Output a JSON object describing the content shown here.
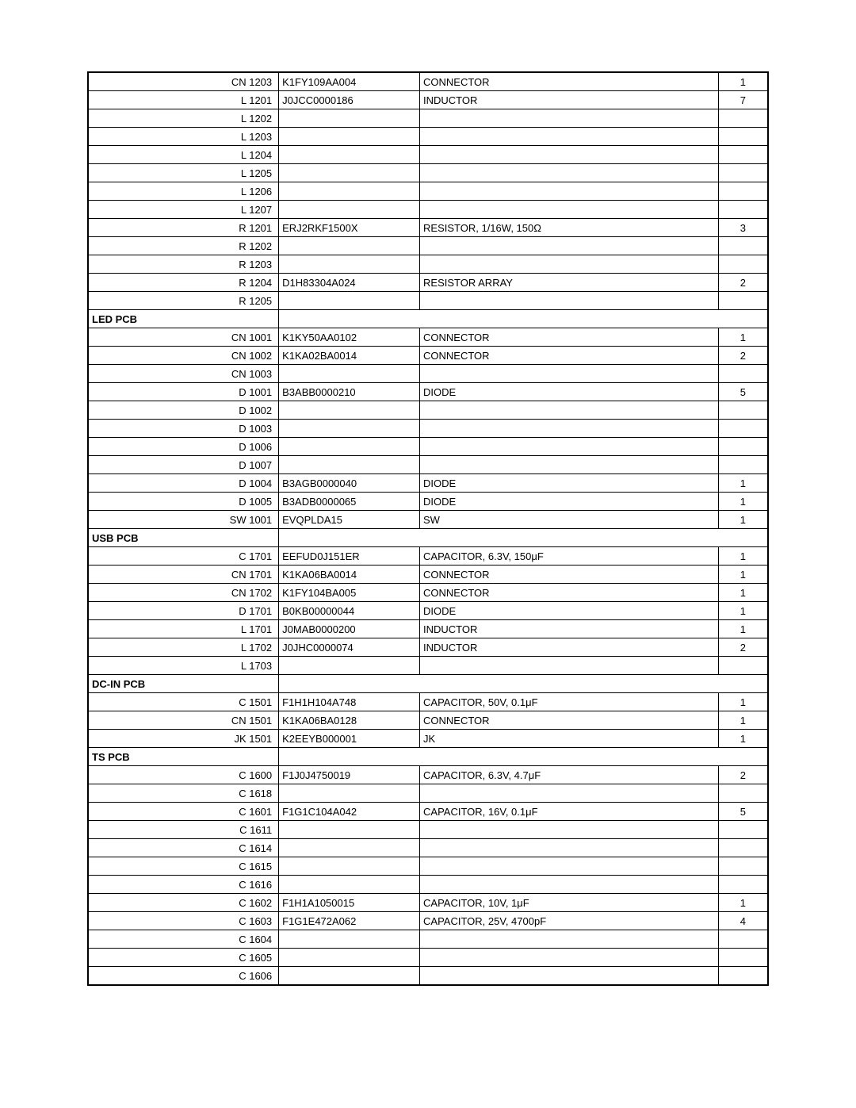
{
  "rows": [
    {
      "ref": "CN 1203",
      "part": "K1FY109AA004",
      "desc": "CONNECTOR",
      "qty": "1"
    },
    {
      "ref": "L 1201",
      "part": "J0JCC0000186",
      "desc": "INDUCTOR",
      "qty": "7"
    },
    {
      "ref": "L 1202",
      "part": "",
      "desc": "",
      "qty": ""
    },
    {
      "ref": "L 1203",
      "part": "",
      "desc": "",
      "qty": ""
    },
    {
      "ref": "L 1204",
      "part": "",
      "desc": "",
      "qty": ""
    },
    {
      "ref": "L 1205",
      "part": "",
      "desc": "",
      "qty": ""
    },
    {
      "ref": "L 1206",
      "part": "",
      "desc": "",
      "qty": ""
    },
    {
      "ref": "L 1207",
      "part": "",
      "desc": "",
      "qty": ""
    },
    {
      "ref": "R 1201",
      "part": "ERJ2RKF1500X",
      "desc": "RESISTOR, 1/16W, 150Ω",
      "qty": "3"
    },
    {
      "ref": "R 1202",
      "part": "",
      "desc": "",
      "qty": ""
    },
    {
      "ref": "R 1203",
      "part": "",
      "desc": "",
      "qty": ""
    },
    {
      "ref": "R 1204",
      "part": "D1H83304A024",
      "desc": "RESISTOR ARRAY",
      "qty": "2"
    },
    {
      "ref": "R 1205",
      "part": "",
      "desc": "",
      "qty": ""
    },
    {
      "section": "LED PCB"
    },
    {
      "ref": "CN 1001",
      "part": "K1KY50AA0102",
      "desc": "CONNECTOR",
      "qty": "1"
    },
    {
      "ref": "CN 1002",
      "part": "K1KA02BA0014",
      "desc": "CONNECTOR",
      "qty": "2"
    },
    {
      "ref": "CN 1003",
      "part": "",
      "desc": "",
      "qty": ""
    },
    {
      "ref": "D 1001",
      "part": "B3ABB0000210",
      "desc": "DIODE",
      "qty": "5"
    },
    {
      "ref": "D 1002",
      "part": "",
      "desc": "",
      "qty": ""
    },
    {
      "ref": "D 1003",
      "part": "",
      "desc": "",
      "qty": ""
    },
    {
      "ref": "D 1006",
      "part": "",
      "desc": "",
      "qty": ""
    },
    {
      "ref": "D 1007",
      "part": "",
      "desc": "",
      "qty": ""
    },
    {
      "ref": "D 1004",
      "part": "B3AGB0000040",
      "desc": "DIODE",
      "qty": "1"
    },
    {
      "ref": "D 1005",
      "part": "B3ADB0000065",
      "desc": "DIODE",
      "qty": "1"
    },
    {
      "ref": "SW 1001",
      "part": "EVQPLDA15",
      "desc": "SW",
      "qty": "1"
    },
    {
      "section": "USB PCB"
    },
    {
      "ref": "C 1701",
      "part": "EEFUD0J151ER",
      "desc": "CAPACITOR, 6.3V, 150μF",
      "qty": "1"
    },
    {
      "ref": "CN 1701",
      "part": "K1KA06BA0014",
      "desc": "CONNECTOR",
      "qty": "1"
    },
    {
      "ref": "CN 1702",
      "part": "K1FY104BA005",
      "desc": "CONNECTOR",
      "qty": "1"
    },
    {
      "ref": "D 1701",
      "part": "B0KB00000044",
      "desc": "DIODE",
      "qty": "1"
    },
    {
      "ref": "L 1701",
      "part": "J0MAB0000200",
      "desc": "INDUCTOR",
      "qty": "1"
    },
    {
      "ref": "L 1702",
      "part": "J0JHC0000074",
      "desc": "INDUCTOR",
      "qty": "2"
    },
    {
      "ref": "L 1703",
      "part": "",
      "desc": "",
      "qty": ""
    },
    {
      "section": "DC-IN PCB"
    },
    {
      "ref": "C 1501",
      "part": "F1H1H104A748",
      "desc": "CAPACITOR, 50V, 0.1μF",
      "qty": "1"
    },
    {
      "ref": "CN 1501",
      "part": "K1KA06BA0128",
      "desc": "CONNECTOR",
      "qty": "1"
    },
    {
      "ref": "JK 1501",
      "part": "K2EEYB000001",
      "desc": "JK",
      "qty": "1"
    },
    {
      "section": "TS PCB"
    },
    {
      "ref": "C 1600",
      "part": "F1J0J4750019",
      "desc": "CAPACITOR, 6.3V, 4.7μF",
      "qty": "2"
    },
    {
      "ref": "C 1618",
      "part": "",
      "desc": "",
      "qty": ""
    },
    {
      "ref": "C 1601",
      "part": "F1G1C104A042",
      "desc": "CAPACITOR, 16V, 0.1μF",
      "qty": "5"
    },
    {
      "ref": "C 1611",
      "part": "",
      "desc": "",
      "qty": ""
    },
    {
      "ref": "C 1614",
      "part": "",
      "desc": "",
      "qty": ""
    },
    {
      "ref": "C 1615",
      "part": "",
      "desc": "",
      "qty": ""
    },
    {
      "ref": "C 1616",
      "part": "",
      "desc": "",
      "qty": ""
    },
    {
      "ref": "C 1602",
      "part": "F1H1A1050015",
      "desc": "CAPACITOR, 10V, 1μF",
      "qty": "1"
    },
    {
      "ref": "C 1603",
      "part": "F1G1E472A062",
      "desc": "CAPACITOR, 25V, 4700pF",
      "qty": "4"
    },
    {
      "ref": "C 1604",
      "part": "",
      "desc": "",
      "qty": ""
    },
    {
      "ref": "C 1605",
      "part": "",
      "desc": "",
      "qty": ""
    },
    {
      "ref": "C 1606",
      "part": "",
      "desc": "",
      "qty": ""
    }
  ]
}
